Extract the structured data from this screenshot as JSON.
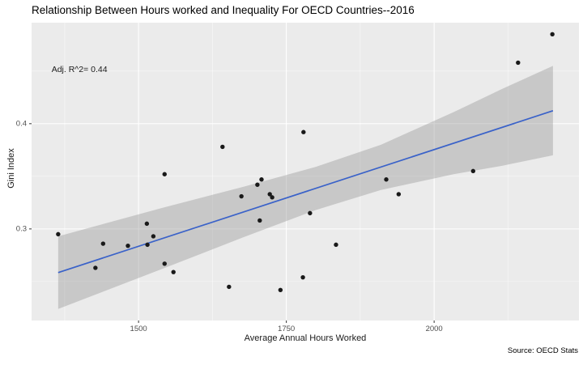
{
  "source": "Source: OECD Stats",
  "chart_data": {
    "type": "scatter",
    "title": "Relationship Between Hours worked and Inequality For OECD Countries--2016",
    "xlabel": "Average Annual Hours Worked",
    "ylabel": "Gini Index",
    "xlim": [
      1319,
      2245
    ],
    "ylim": [
      0.213,
      0.496
    ],
    "x_ticks": [
      1500,
      1750,
      2000
    ],
    "x_minor_ticks": [
      1375,
      1625,
      1875,
      2125
    ],
    "y_ticks": [
      0.3,
      0.4
    ],
    "y_minor_ticks": [
      0.25,
      0.35,
      0.45
    ],
    "grid": true,
    "legend": "none",
    "annotation": {
      "text": "Adj. R^2= 0.44",
      "x": 1400,
      "y": 0.4515
    },
    "points": [
      [
        1364,
        0.295
      ],
      [
        1427,
        0.263
      ],
      [
        1440,
        0.286
      ],
      [
        1482,
        0.284
      ],
      [
        1514,
        0.305
      ],
      [
        1525,
        0.293
      ],
      [
        1515,
        0.285
      ],
      [
        1544,
        0.352
      ],
      [
        1544,
        0.267
      ],
      [
        1559,
        0.259
      ],
      [
        1642,
        0.378
      ],
      [
        1653,
        0.245
      ],
      [
        1674,
        0.331
      ],
      [
        1701,
        0.342
      ],
      [
        1708,
        0.347
      ],
      [
        1722,
        0.333
      ],
      [
        1726,
        0.33
      ],
      [
        1705,
        0.308
      ],
      [
        1740,
        0.242
      ],
      [
        1778,
        0.254
      ],
      [
        1779,
        0.392
      ],
      [
        1790,
        0.315
      ],
      [
        1834,
        0.285
      ],
      [
        1919,
        0.347
      ],
      [
        1940,
        0.333
      ],
      [
        2066,
        0.355
      ],
      [
        2142,
        0.458
      ],
      [
        2200,
        0.485
      ]
    ],
    "regression_line": {
      "x1": 1364,
      "y1": 0.2585,
      "x2": 2201,
      "y2": 0.4123
    },
    "ci_band": {
      "x": [
        1364,
        1540,
        1677,
        1800,
        1910,
        2033,
        2115,
        2201
      ],
      "upper": [
        0.293,
        0.32,
        0.34,
        0.359,
        0.38,
        0.411,
        0.433,
        0.455
      ],
      "lower": [
        0.224,
        0.262,
        0.292,
        0.318,
        0.337,
        0.352,
        0.36,
        0.37
      ]
    },
    "colors": {
      "panel_background": "#ebebeb",
      "grid_major": "#ffffff",
      "grid_minor": "#ffffff",
      "ci_band": "#999999",
      "regression_line": "#3a62c9",
      "point": "#191919",
      "tick_text": "#4d4d4d",
      "axis_text": "#1a1a1a",
      "title_text": "#000000"
    }
  }
}
